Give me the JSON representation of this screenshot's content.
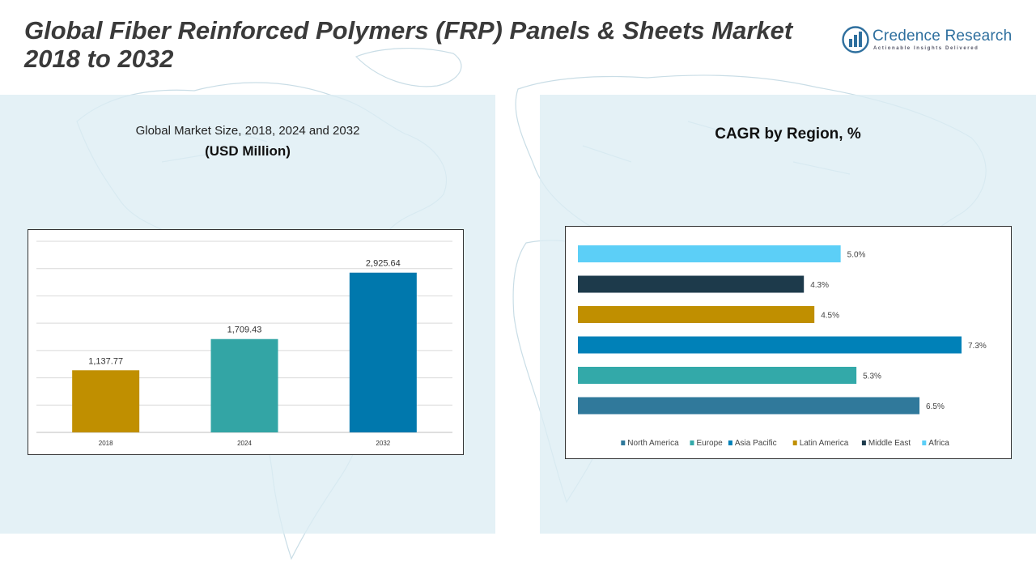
{
  "header": {
    "title_line1": "Global Fiber Reinforced Polymers (FRP) Panels & Sheets Market",
    "title_line2": "2018 to 2032"
  },
  "logo": {
    "name": "Credence Research",
    "tagline": "Actionable Insights Delivered",
    "icon": "bar-chart-globe-icon",
    "color": "#2e6f9e"
  },
  "left_panel": {
    "subtitle": "Global Market Size, 2018, 2024 and 2032",
    "unit": "(USD Million)"
  },
  "right_panel": {
    "title": "CAGR by Region, %"
  },
  "chart_data": [
    {
      "type": "bar",
      "categories": [
        "2018",
        "2024",
        "2032"
      ],
      "values": [
        1137.77,
        1709.43,
        2925.64
      ],
      "value_labels": [
        "1,137.77",
        "1,709.43",
        "2,925.64"
      ],
      "colors": [
        "#c08f00",
        "#33a5a5",
        "#0078ad"
      ],
      "ylim": [
        0,
        3500
      ],
      "grid": true
    },
    {
      "type": "bar",
      "orientation": "horizontal",
      "categories": [
        "North America",
        "Europe",
        "Asia Pacific",
        "Latin America",
        "Middle East",
        "Africa"
      ],
      "values": [
        6.5,
        5.3,
        7.3,
        4.5,
        4.3,
        5.0
      ],
      "value_labels": [
        "6.5%",
        "5.3%",
        "7.3%",
        "4.5%",
        "4.3%",
        "5.0%"
      ],
      "colors": [
        "#30799b",
        "#33a9a9",
        "#0081b8",
        "#c08f00",
        "#1d3a4b",
        "#5ccff7"
      ],
      "xlim": [
        0,
        7.3
      ],
      "legend_position": "bottom"
    }
  ]
}
